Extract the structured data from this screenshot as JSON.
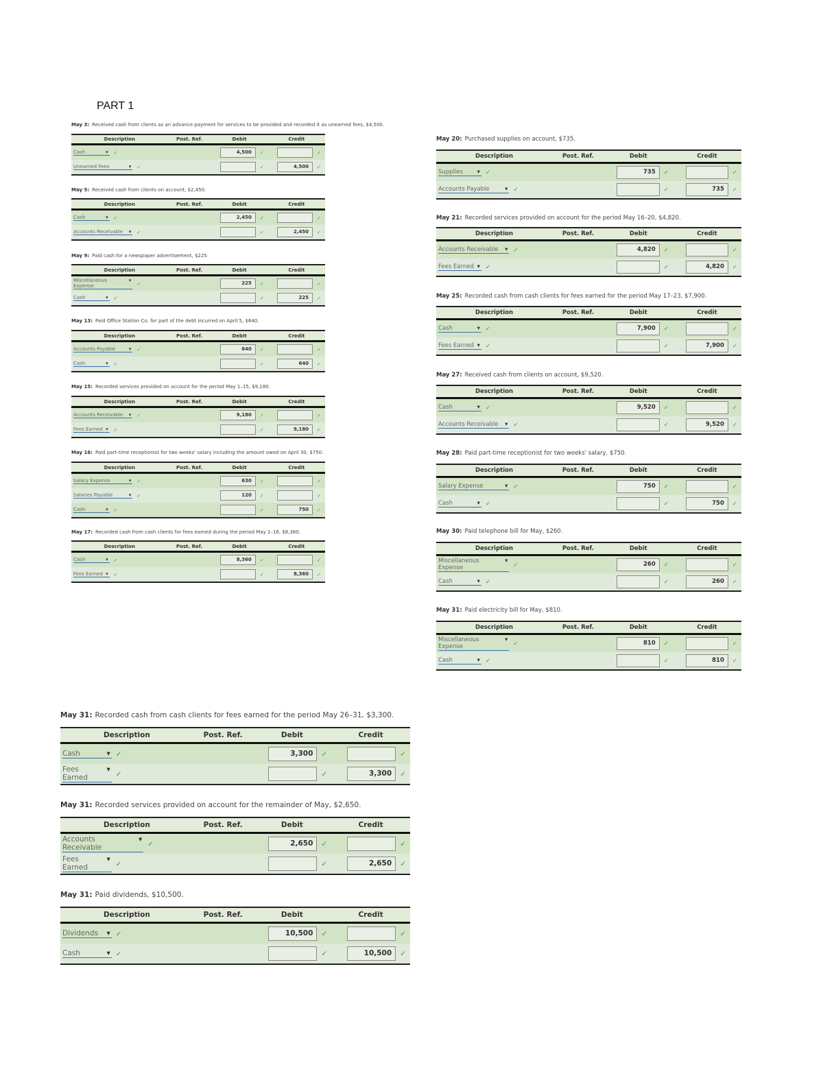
{
  "part_title": "PART 1",
  "headers": {
    "description": "Description",
    "post_ref": "Post. Ref.",
    "debit": "Debit",
    "credit": "Credit"
  },
  "colors": {
    "check": "#3c9a2c",
    "row_dark": "#d3e4c6",
    "row_light": "#dfeadb",
    "header": "#e2ecd8"
  },
  "entries": [
    {
      "date": "May 3:",
      "text": "Received cash from clients as an advance payment for services to be provided and recorded it as unearned fees, $4,500.",
      "rows": [
        {
          "account": "Cash",
          "debit": "4,500",
          "credit": ""
        },
        {
          "account": "Unearned Fees",
          "debit": "",
          "credit": "4,500"
        }
      ]
    },
    {
      "date": "May 5:",
      "text": "Received cash from clients on account, $2,450.",
      "rows": [
        {
          "account": "Cash",
          "debit": "2,450",
          "credit": ""
        },
        {
          "account": "Accounts Receivable",
          "debit": "",
          "credit": "2,450"
        }
      ]
    },
    {
      "date": "May 9:",
      "text": "Paid cash for a newspaper advertisement, $225.",
      "rows": [
        {
          "account": "Miscellaneous Expense",
          "debit": "225",
          "credit": ""
        },
        {
          "account": "Cash",
          "debit": "",
          "credit": "225"
        }
      ]
    },
    {
      "date": "May 13:",
      "text": "Paid Office Station Co. for part of the debt incurred on April 5, $640.",
      "rows": [
        {
          "account": "Accounts Payable",
          "debit": "640",
          "credit": ""
        },
        {
          "account": "Cash",
          "debit": "",
          "credit": "640"
        }
      ]
    },
    {
      "date": "May 15:",
      "text": "Recorded services provided on account for the period May 1–15, $9,180.",
      "rows": [
        {
          "account": "Accounts Receivable",
          "debit": "9,180",
          "credit": ""
        },
        {
          "account": "Fees Earned",
          "debit": "",
          "credit": "9,180"
        }
      ]
    },
    {
      "date": "May 16:",
      "text": "Paid part-time receptionist for two weeks' salary including the amount owed on April 30, $750.",
      "rows": [
        {
          "account": "Salary Expense",
          "debit": "630",
          "credit": ""
        },
        {
          "account": "Salaries Payable",
          "debit": "120",
          "credit": ""
        },
        {
          "account": "Cash",
          "debit": "",
          "credit": "750"
        }
      ]
    },
    {
      "date": "May 17:",
      "text": "Recorded cash from cash clients for fees earned during the period May 1–16, $8,360.",
      "rows": [
        {
          "account": "Cash",
          "debit": "8,360",
          "credit": ""
        },
        {
          "account": "Fees Earned",
          "debit": "",
          "credit": "8,360"
        }
      ]
    },
    {
      "date": "May 20:",
      "text": "Purchased supplies on account, $735.",
      "rows": [
        {
          "account": "Supplies",
          "debit": "735",
          "credit": ""
        },
        {
          "account": "Accounts Payable",
          "debit": "",
          "credit": "735"
        }
      ]
    },
    {
      "date": "May 21:",
      "text": "Recorded services provided on account for the period May 16–20, $4,820.",
      "rows": [
        {
          "account": "Accounts Receivable",
          "debit": "4,820",
          "credit": ""
        },
        {
          "account": "Fees Earned",
          "debit": "",
          "credit": "4,820"
        }
      ]
    },
    {
      "date": "May 25:",
      "text": "Recorded cash from cash clients for fees earned for the period May 17–23, $7,900.",
      "rows": [
        {
          "account": "Cash",
          "debit": "7,900",
          "credit": ""
        },
        {
          "account": "Fees Earned",
          "debit": "",
          "credit": "7,900"
        }
      ]
    },
    {
      "date": "May 27:",
      "text": "Received cash from clients on account, $9,520.",
      "rows": [
        {
          "account": "Cash",
          "debit": "9,520",
          "credit": ""
        },
        {
          "account": "Accounts Receivable",
          "debit": "",
          "credit": "9,520"
        }
      ]
    },
    {
      "date": "May 28:",
      "text": "Paid part-time receptionist for two weeks' salary, $750.",
      "rows": [
        {
          "account": "Salary Expense",
          "debit": "750",
          "credit": ""
        },
        {
          "account": "Cash",
          "debit": "",
          "credit": "750"
        }
      ]
    },
    {
      "date": "May 30:",
      "text": "Paid telephone bill for May, $260.",
      "rows": [
        {
          "account": "Miscellaneous Expense",
          "debit": "260",
          "credit": ""
        },
        {
          "account": "Cash",
          "debit": "",
          "credit": "260"
        }
      ]
    },
    {
      "date": "May 31:",
      "text": "Paid electricity bill for May, $810.",
      "rows": [
        {
          "account": "Miscellaneous Expense",
          "debit": "810",
          "credit": ""
        },
        {
          "account": "Cash",
          "debit": "",
          "credit": "810"
        }
      ]
    },
    {
      "date": "May 31:",
      "text": "Recorded cash from cash clients for fees earned for the period May 26–31, $3,300.",
      "rows": [
        {
          "account": "Cash",
          "debit": "3,300",
          "credit": ""
        },
        {
          "account": "Fees Earned",
          "debit": "",
          "credit": "3,300"
        }
      ]
    },
    {
      "date": "May 31:",
      "text": "Recorded services provided on account for the remainder of May, $2,650.",
      "rows": [
        {
          "account": "Accounts Receivable",
          "debit": "2,650",
          "credit": ""
        },
        {
          "account": "Fees Earned",
          "debit": "",
          "credit": "2,650"
        }
      ]
    },
    {
      "date": "May 31:",
      "text": "Paid dividends, $10,500.",
      "rows": [
        {
          "account": "Dividends",
          "debit": "10,500",
          "credit": ""
        },
        {
          "account": "Cash",
          "debit": "",
          "credit": "10,500"
        }
      ]
    }
  ]
}
